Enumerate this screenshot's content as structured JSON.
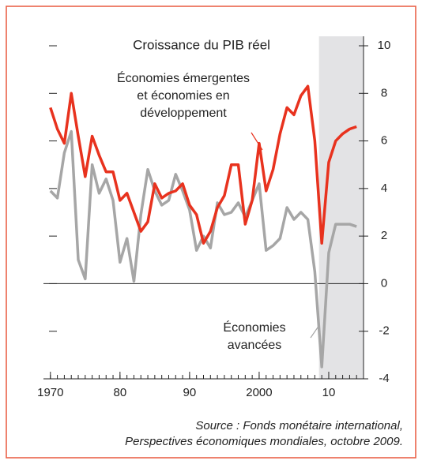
{
  "chart_data": {
    "type": "line",
    "title": "Croissance du PIB réel",
    "x": [
      1970,
      1971,
      1972,
      1973,
      1974,
      1975,
      1976,
      1977,
      1978,
      1979,
      1980,
      1981,
      1982,
      1983,
      1984,
      1985,
      1986,
      1987,
      1988,
      1989,
      1990,
      1991,
      1992,
      1993,
      1994,
      1995,
      1996,
      1997,
      1998,
      1999,
      2000,
      2001,
      2002,
      2003,
      2004,
      2005,
      2006,
      2007,
      2008,
      2009,
      2010,
      2011,
      2012,
      2013,
      2014
    ],
    "series": [
      {
        "name": [
          "Économies émergentes",
          "et économies en",
          "développement"
        ],
        "color": "#e8321e",
        "values": [
          7.4,
          6.5,
          5.9,
          8.0,
          6.2,
          4.5,
          6.2,
          5.4,
          4.7,
          4.7,
          3.5,
          3.8,
          3.0,
          2.2,
          2.6,
          4.2,
          3.6,
          3.8,
          3.9,
          4.2,
          3.3,
          2.9,
          1.7,
          2.2,
          3.2,
          3.7,
          5.0,
          5.0,
          2.5,
          3.5,
          5.9,
          3.9,
          4.8,
          6.3,
          7.4,
          7.1,
          7.9,
          8.3,
          6.0,
          1.7,
          5.1,
          6.0,
          6.3,
          6.5,
          6.6
        ]
      },
      {
        "name": [
          "Économies",
          "avancées"
        ],
        "color": "#a6a6a6",
        "values": [
          3.9,
          3.6,
          5.5,
          6.4,
          1.0,
          0.2,
          5.0,
          3.8,
          4.4,
          3.5,
          0.9,
          1.9,
          0.1,
          2.9,
          4.8,
          3.9,
          3.3,
          3.5,
          4.6,
          3.9,
          3.1,
          1.4,
          2.0,
          1.5,
          3.4,
          2.9,
          3.0,
          3.4,
          2.8,
          3.5,
          4.2,
          1.4,
          1.6,
          1.9,
          3.2,
          2.7,
          3.0,
          2.7,
          0.5,
          -3.5,
          1.3,
          2.5,
          2.5,
          2.5,
          2.4
        ]
      }
    ],
    "xlim": [
      1969,
      2015
    ],
    "xticks": [
      1970,
      {
        "value": 1980,
        "label": "80"
      },
      {
        "value": 1990,
        "label": "90"
      },
      2000,
      {
        "value": 2010,
        "label": "10"
      }
    ],
    "ylim": [
      -4,
      10
    ],
    "yticks": [
      -4,
      -2,
      0,
      2,
      4,
      6,
      8,
      10
    ],
    "shaded_xrange": [
      2008.6,
      2015
    ],
    "source": [
      "Source : Fonds monétaire international,",
      "Perspectives économiques mondiales, octobre 2009."
    ]
  }
}
